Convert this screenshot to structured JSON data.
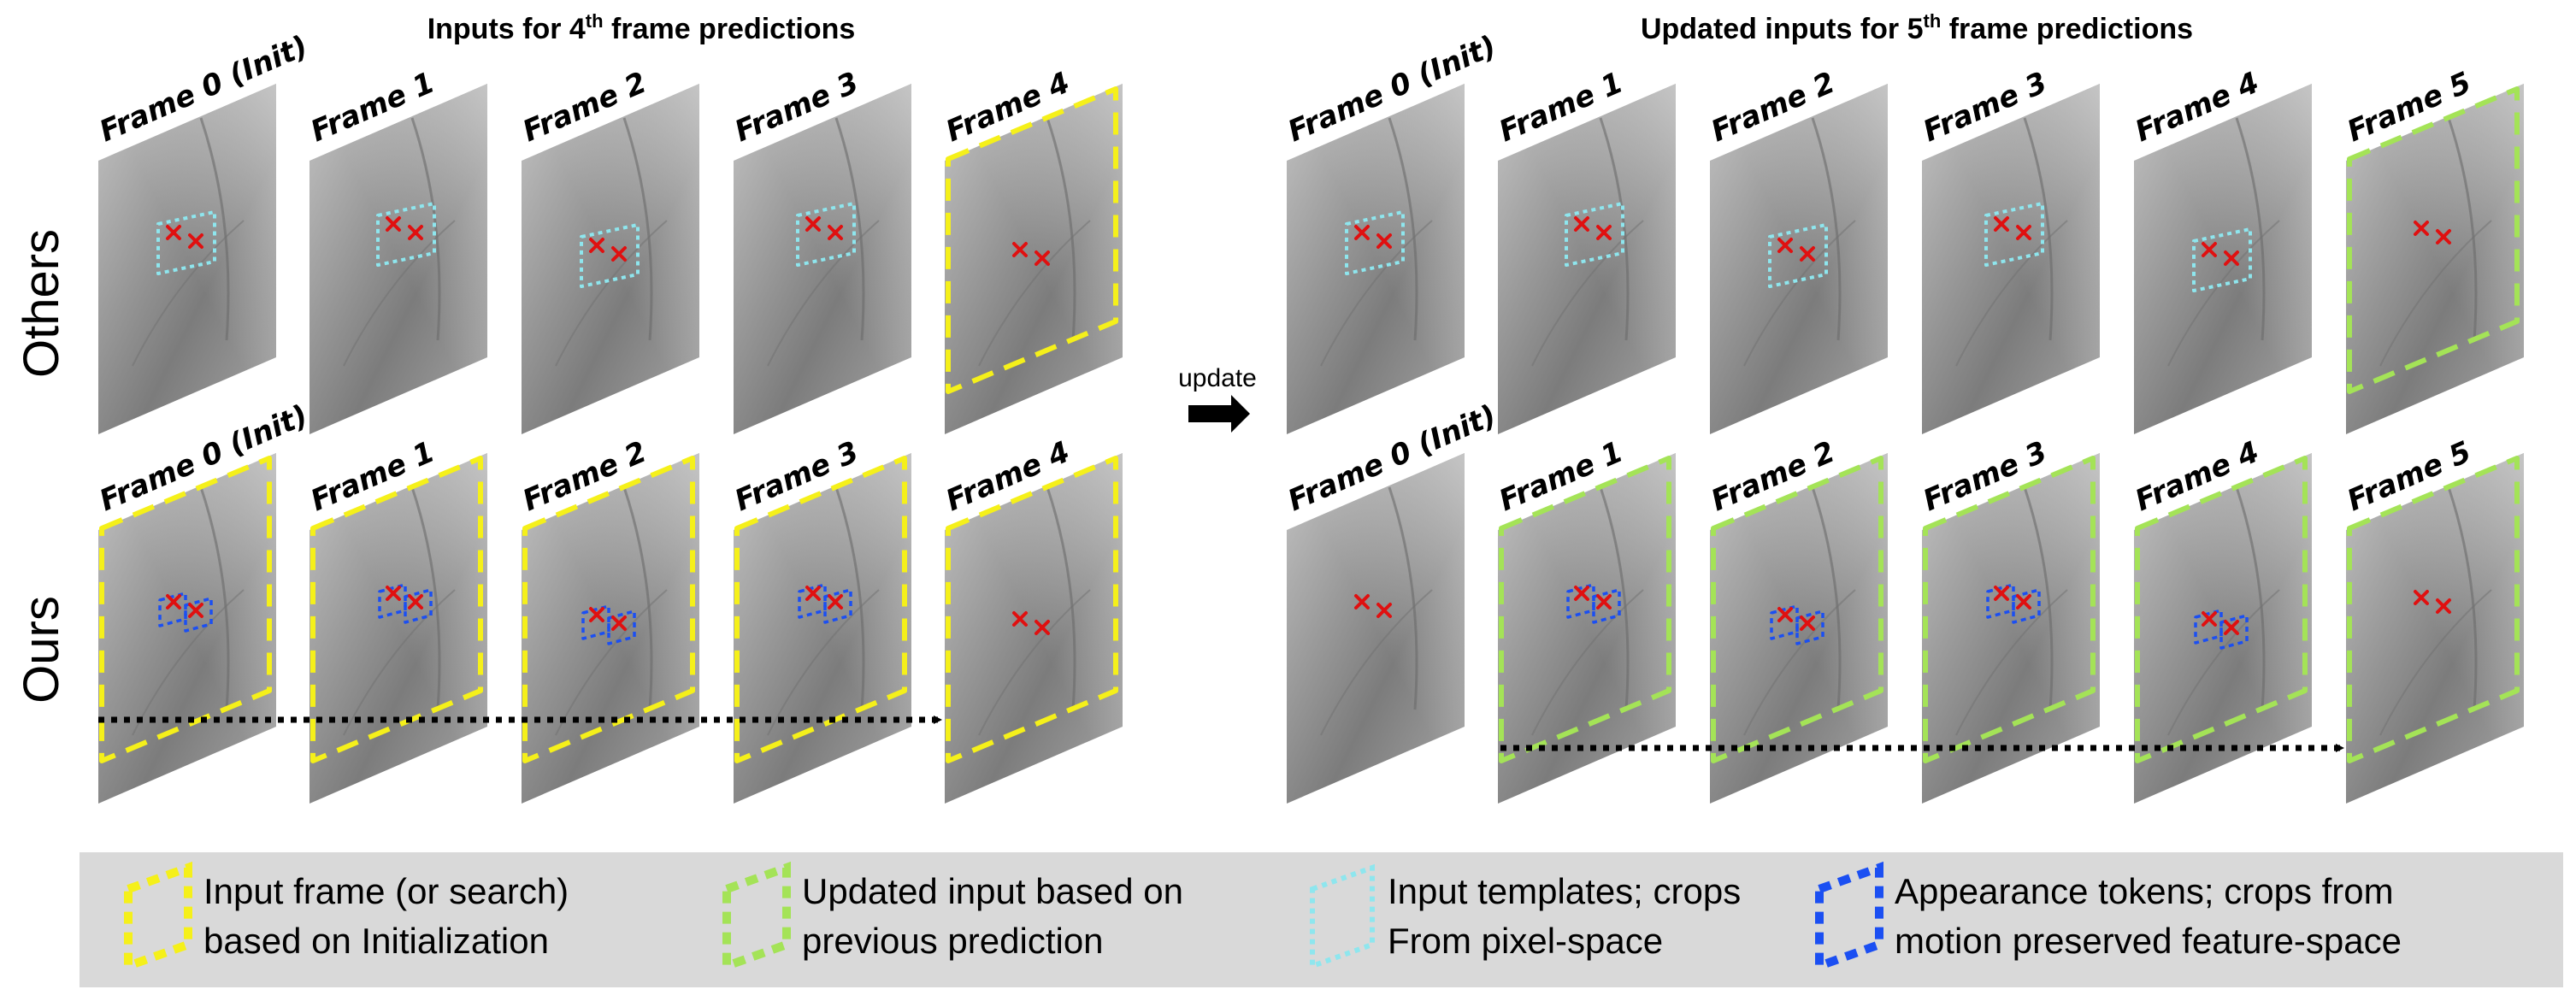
{
  "titles": {
    "left": {
      "prefix": "Inputs for 4",
      "sup": "th",
      "suffix": " frame predictions"
    },
    "right": {
      "prefix": "Updated inputs for 5",
      "sup": "th",
      "suffix": " frame predictions"
    }
  },
  "rows": {
    "others": "Others",
    "ours": "Ours"
  },
  "update_label": "update",
  "left_frame_labels": [
    "Frame 0 (Init)",
    "Frame 1",
    "Frame 2",
    "Frame 3",
    "Frame 4"
  ],
  "right_frame_labels": [
    "Frame 0 (Init)",
    "Frame 1",
    "Frame 2",
    "Frame 3",
    "Frame 4",
    "Frame 5"
  ],
  "legend": [
    {
      "color": "#f5f01a",
      "line1": "Input frame (or search)",
      "line2": "based on Initialization"
    },
    {
      "color": "#a4e357",
      "line1": "Updated input based on",
      "line2": "previous prediction"
    },
    {
      "color": "#8ee6ee",
      "line1": "Input templates; crops",
      "line2": "From pixel-space"
    },
    {
      "color": "#1b4ff2",
      "line1": "Appearance tokens; crops from",
      "line2": "motion preserved feature-space"
    }
  ],
  "colors": {
    "yellow": "#f5f01a",
    "green": "#a4e357",
    "cyan": "#8ee6ee",
    "blue": "#1b4ff2",
    "marker": "#e01010",
    "legend_bg": "#d9d9d9"
  }
}
